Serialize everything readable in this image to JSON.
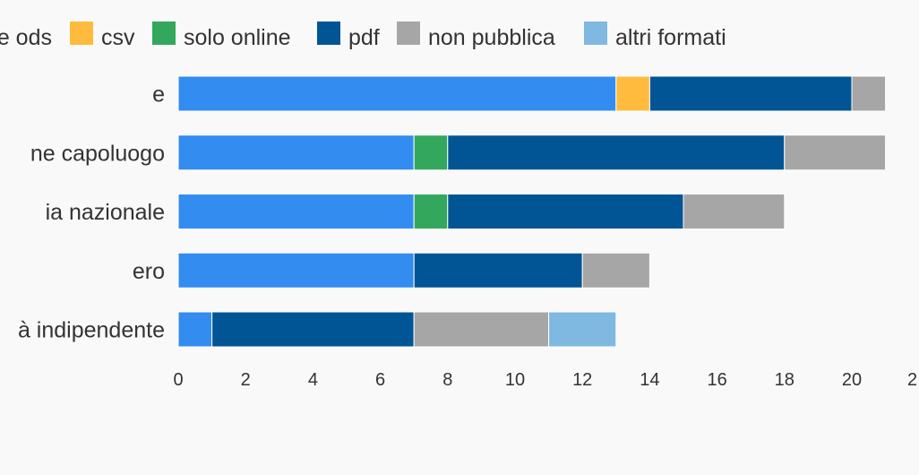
{
  "chart_data": {
    "type": "bar",
    "orientation": "horizontal",
    "stacked": true,
    "categories": [
      "e",
      "ne capoluogo",
      "ia nazionale",
      "ero",
      "à indipendente"
    ],
    "series": [
      {
        "name": "e ods",
        "color": "#338cf0",
        "values": [
          13,
          7,
          7,
          7,
          1
        ]
      },
      {
        "name": "csv",
        "color": "#ffbb3d",
        "values": [
          1,
          0,
          0,
          0,
          0
        ]
      },
      {
        "name": "solo online",
        "color": "#33a85c",
        "values": [
          0,
          1,
          1,
          0,
          0
        ]
      },
      {
        "name": "pdf",
        "color": "#025595",
        "values": [
          6,
          10,
          7,
          5,
          6
        ]
      },
      {
        "name": "non pubblica",
        "color": "#a6a6a6",
        "values": [
          1,
          3,
          3,
          2,
          4
        ]
      },
      {
        "name": "altri formati",
        "color": "#7fb8e0",
        "values": [
          0,
          0,
          0,
          0,
          2
        ]
      }
    ],
    "xticks": [
      "0",
      "2",
      "4",
      "6",
      "8",
      "10",
      "12",
      "14",
      "16",
      "18",
      "20",
      "2"
    ],
    "xlim": [
      0,
      22
    ],
    "legend_position": "top",
    "grid": false
  }
}
